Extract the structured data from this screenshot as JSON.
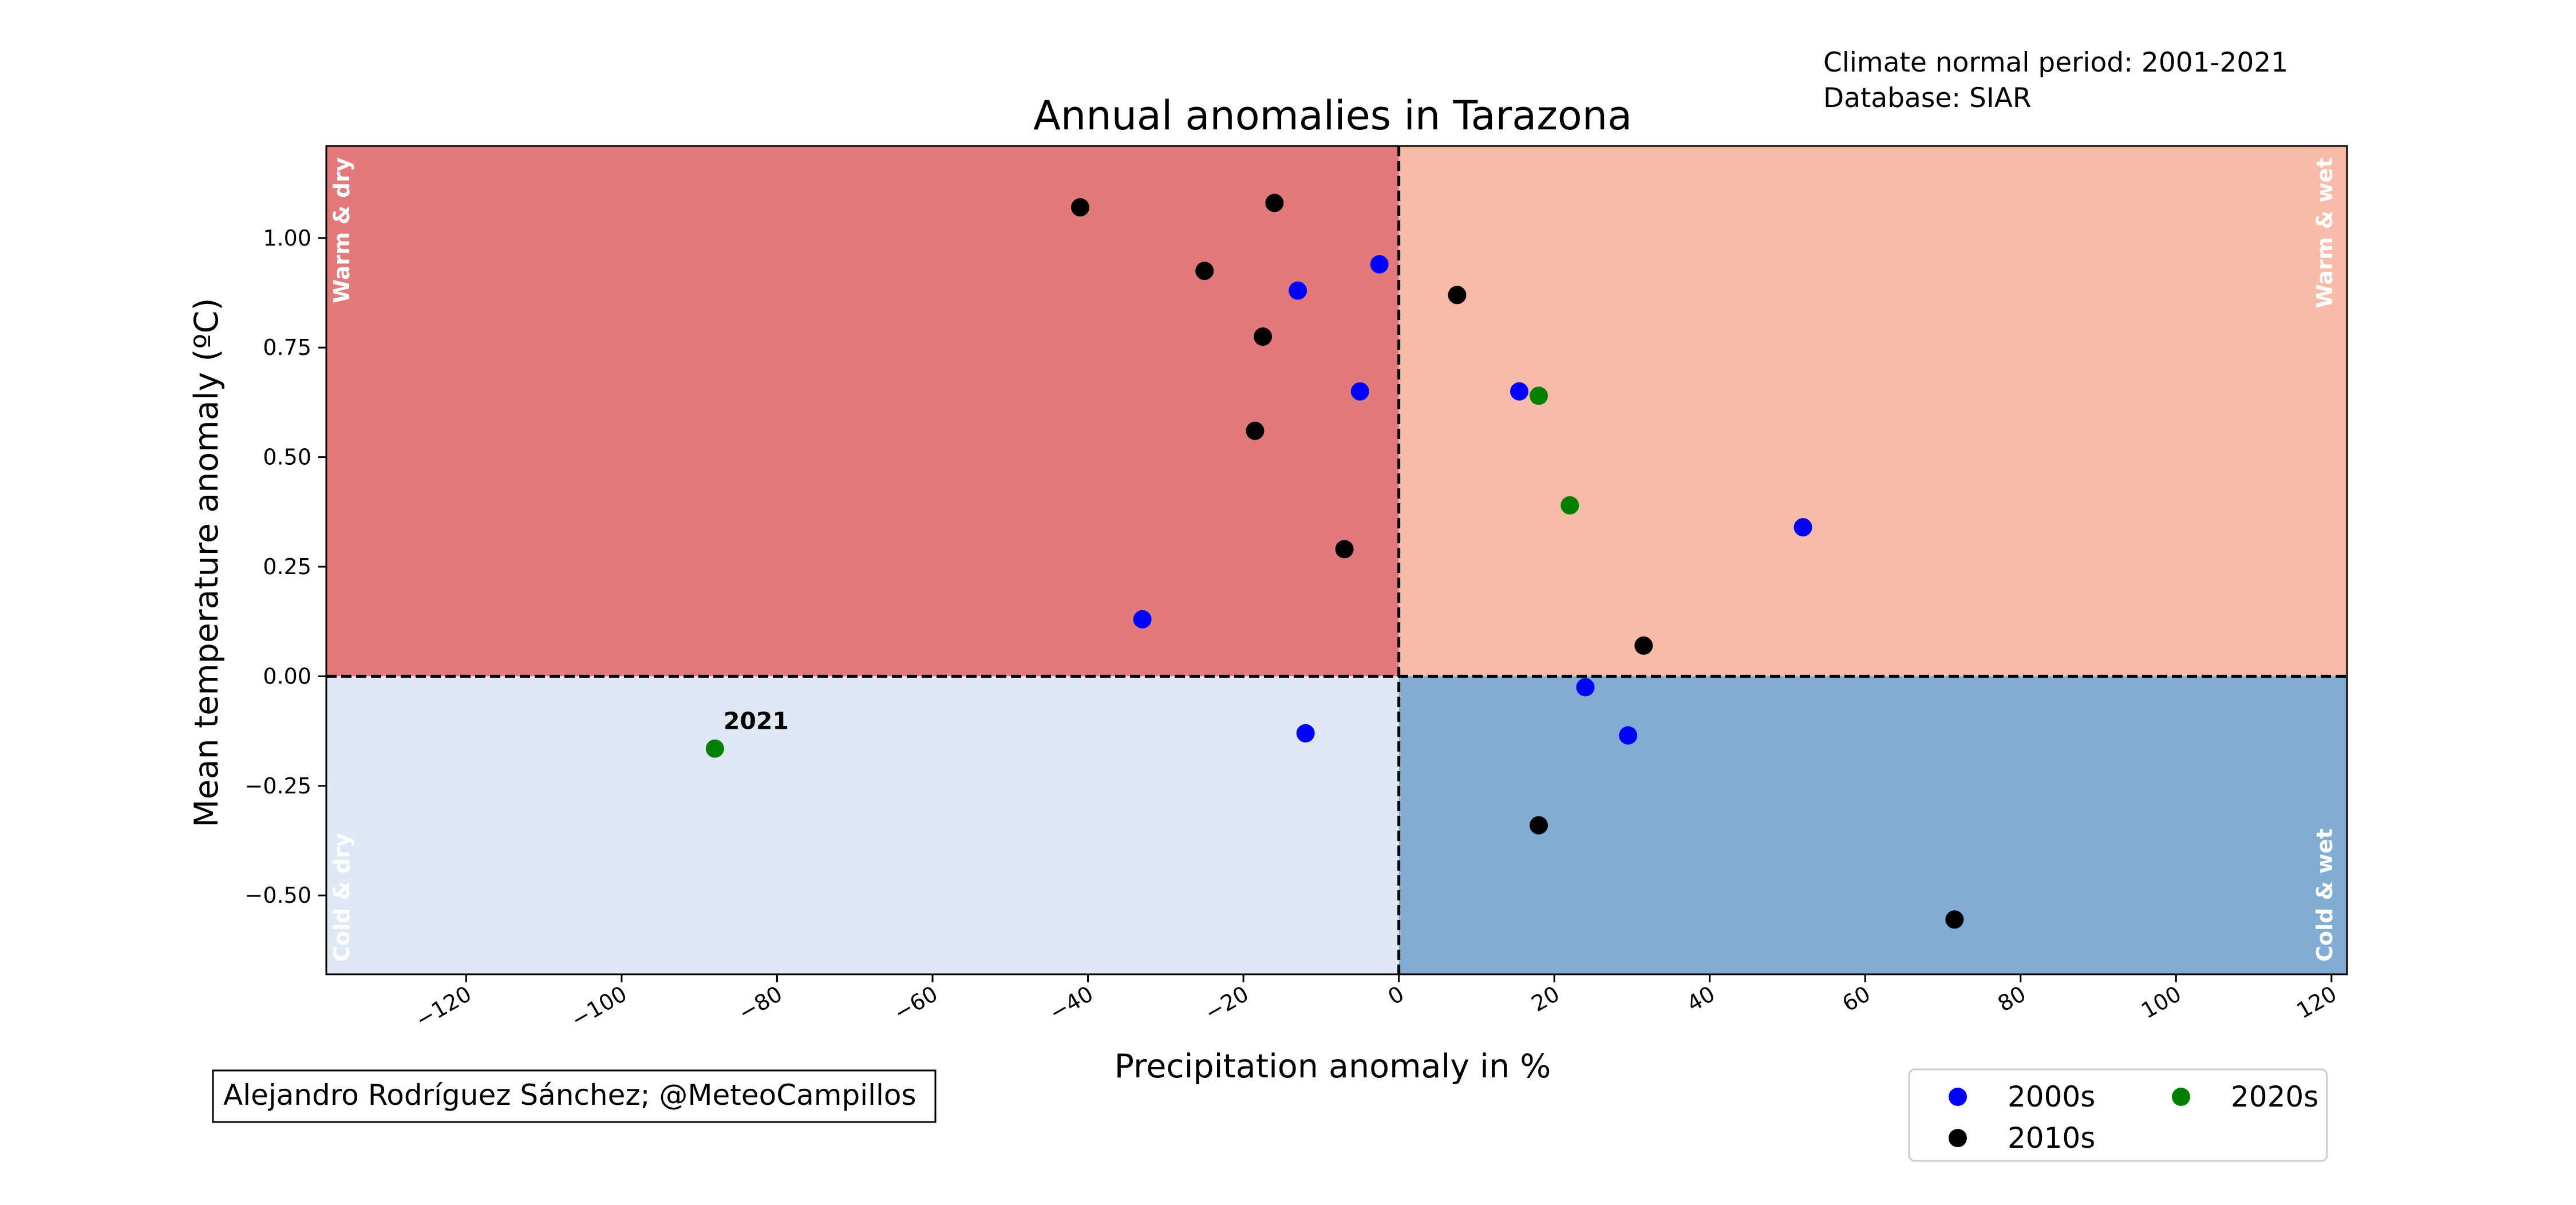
{
  "chart_data": {
    "type": "scatter",
    "title": "Annual anomalies in Tarazona",
    "xlabel": "Precipitation anomaly in %",
    "ylabel": "Mean temperature anomaly (ºC)",
    "xlim": [
      -138,
      122
    ],
    "ylim": [
      -0.68,
      1.21
    ],
    "xticks": [
      -120,
      -100,
      -80,
      -60,
      -40,
      -20,
      0,
      20,
      40,
      60,
      80,
      100,
      120
    ],
    "xtick_labels": [
      "−120",
      "−100",
      "−80",
      "−60",
      "−40",
      "−20",
      "0",
      "20",
      "40",
      "60",
      "80",
      "100",
      "120"
    ],
    "yticks": [
      -0.5,
      -0.25,
      0,
      0.25,
      0.5,
      0.75,
      1.0
    ],
    "ytick_labels": [
      "−0.50",
      "−0.25",
      "0.00",
      "0.25",
      "0.50",
      "0.75",
      "1.00"
    ],
    "grid": false,
    "legend_position": "bottom-right, outside plot",
    "quadrants": {
      "warm_dry": {
        "label": "Warm & dry",
        "color": "#e27a7c"
      },
      "warm_wet": {
        "label": "Warm & wet",
        "color": "#f7bba8"
      },
      "cold_dry": {
        "label": "Cold & dry",
        "color": "#dfe9f5"
      },
      "cold_wet": {
        "label": "Cold & wet",
        "color": "#81add4"
      }
    },
    "series": [
      {
        "name": "2000s",
        "color": "#0000ff",
        "points": [
          {
            "x": -13,
            "y": 0.88
          },
          {
            "x": -2.5,
            "y": 0.94
          },
          {
            "x": -5,
            "y": 0.65
          },
          {
            "x": 15.5,
            "y": 0.65
          },
          {
            "x": 52,
            "y": 0.34
          },
          {
            "x": -33,
            "y": 0.13
          },
          {
            "x": -12,
            "y": -0.13
          },
          {
            "x": 24,
            "y": -0.025
          },
          {
            "x": 29.5,
            "y": -0.135
          }
        ]
      },
      {
        "name": "2010s",
        "color": "#000000",
        "points": [
          {
            "x": -41,
            "y": 1.07
          },
          {
            "x": -16,
            "y": 1.08
          },
          {
            "x": -25,
            "y": 0.925
          },
          {
            "x": -17.5,
            "y": 0.775
          },
          {
            "x": 7.5,
            "y": 0.87
          },
          {
            "x": -18.5,
            "y": 0.56
          },
          {
            "x": -7,
            "y": 0.29
          },
          {
            "x": 31.5,
            "y": 0.07
          },
          {
            "x": 18,
            "y": -0.34
          },
          {
            "x": 71.5,
            "y": -0.555
          }
        ]
      },
      {
        "name": "2020s",
        "color": "#008000",
        "points": [
          {
            "x": 18,
            "y": 0.64
          },
          {
            "x": 22,
            "y": 0.39
          },
          {
            "x": -88,
            "y": -0.165
          }
        ]
      }
    ],
    "annotations": [
      {
        "text": "2021",
        "x": -88,
        "y": -0.165
      }
    ],
    "info_lines": [
      "Climate normal period: 2001-2021",
      "Database: SIAR"
    ],
    "credit": "Alejandro Rodríguez Sánchez; @MeteoCampillos"
  }
}
